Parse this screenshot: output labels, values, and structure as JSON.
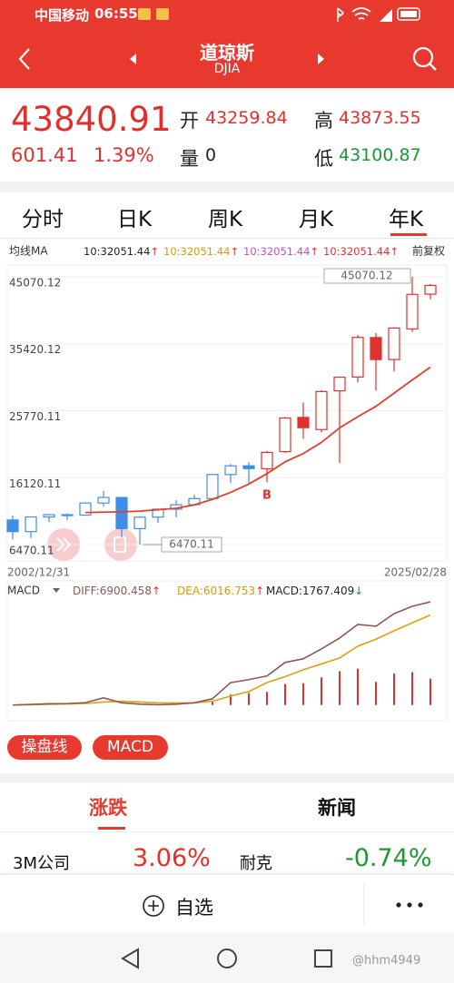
{
  "status_bar": {
    "carrier": "中国移动",
    "time": "06:55"
  },
  "header": {
    "title": "道琼斯",
    "subtitle": "DJIA"
  },
  "quote": {
    "price": "43840.91",
    "change": "601.41",
    "change_pct": "1.39%",
    "open_label": "开",
    "open": "43259.84",
    "high_label": "高",
    "high": "43873.55",
    "volume_label": "量",
    "volume": "0",
    "low_label": "低",
    "low": "43100.87"
  },
  "tabs": [
    "分时",
    "日K",
    "周K",
    "月K",
    "年K"
  ],
  "chart_data": [
    {
      "type": "candlestick",
      "ma_label": "均线MA",
      "ma_legend": [
        {
          "text": "10:32051.44",
          "trend": "↑",
          "color": "#222222"
        },
        {
          "text": "10:32051.44",
          "trend": "↑",
          "color": "#d99a00"
        },
        {
          "text": "10:32051.44",
          "trend": "↑",
          "color": "#c050c0"
        },
        {
          "text": "10:32051.44",
          "trend": "↑",
          "color": "#e03030"
        }
      ],
      "adjust_label": "前复权",
      "categories": [
        "2002/12/31",
        null,
        null,
        null,
        null,
        null,
        null,
        null,
        null,
        null,
        null,
        null,
        null,
        null,
        null,
        null,
        null,
        null,
        null,
        null,
        null,
        null,
        null,
        "2025/02/28"
      ],
      "open": [
        10022,
        8342,
        10453,
        10783,
        10718,
        12460,
        13262,
        8772,
        10431,
        11577,
        12221,
        13104,
        16572,
        17823,
        17405,
        19872,
        24809,
        23058,
        28638,
        30627,
        36321,
        33148,
        37566,
        42574
      ],
      "high": [
        10673,
        10454,
        10868,
        10984,
        12510,
        14198,
        13279,
        10580,
        11625,
        12876,
        13661,
        16588,
        18103,
        18351,
        19987,
        24876,
        26952,
        28701,
        30637,
        36679,
        36953,
        37778,
        45070.12,
        44034
      ],
      "low": [
        7198,
        7416,
        9708,
        10012,
        10661,
        11939,
        7450,
        6470.11,
        9614,
        10405,
        12035,
        13104,
        15340,
        15370,
        15451,
        19677,
        21713,
        22638,
        18214,
        29856,
        28661,
        31430,
        37122,
        41844
      ],
      "close": [
        8342,
        10454,
        10783,
        10718,
        12463,
        13265,
        8776,
        10428,
        11578,
        12218,
        13104,
        16577,
        17823,
        17425,
        19763,
        24719,
        23327,
        28538,
        30606,
        36338,
        33147,
        37690,
        42544,
        43840.91
      ],
      "colors": [
        "#3f8ee8",
        "#3f8ee8",
        "#3f8ee8",
        "#3f8ee8",
        "#3f8ee8",
        "#3f8ee8",
        "#3f8ee8",
        "#3f8ee8",
        "#3f8ee8",
        "#3f8ee8",
        "#3f8ee8",
        "#3f8ee8",
        "#3f8ee8",
        "#3f8ee8",
        "#e03030",
        "#e03030",
        "#e03030",
        "#e03030",
        "#e03030",
        "#e03030",
        "#e03030",
        "#e03030",
        "#e03030",
        "#e03030"
      ],
      "ma": [
        null,
        null,
        null,
        null,
        11100,
        11150,
        11200,
        11300,
        11500,
        11700,
        12200,
        13000,
        14000,
        15200,
        16700,
        18400,
        19600,
        21200,
        23300,
        24900,
        26400,
        28300,
        30200,
        32051.44
      ],
      "ma_color": "#e04030",
      "high_marker": "45070.12",
      "low_marker": "6470.11",
      "signal": "B",
      "ylim": [
        6470.11,
        45070.12
      ],
      "yticks": [
        45070.12,
        35420.12,
        25770.11,
        16120.11,
        6470.11
      ],
      "grid": true
    },
    {
      "type": "macd",
      "label": "MACD",
      "legend": [
        {
          "text": "DIFF:6900.458",
          "trend": "↑",
          "color": "#8b5a55"
        },
        {
          "text": "DEA:6016.753",
          "trend": "↑",
          "color": "#d99a00"
        },
        {
          "text": "MACD:1767.409",
          "trend": "↓",
          "color": "#222222"
        }
      ],
      "diff": [
        0,
        40,
        90,
        100,
        160,
        480,
        150,
        60,
        20,
        60,
        150,
        420,
        1500,
        1700,
        1940,
        2850,
        3090,
        3750,
        4480,
        5390,
        5270,
        6110,
        6600,
        6900.458
      ],
      "dea": [
        0,
        20,
        50,
        70,
        100,
        200,
        250,
        200,
        150,
        140,
        150,
        250,
        600,
        900,
        1500,
        1900,
        2360,
        2750,
        3150,
        3930,
        4400,
        4960,
        5500,
        6016.753
      ],
      "macd": [
        0,
        0,
        0,
        0,
        0,
        0,
        0,
        0,
        0,
        0,
        0,
        200,
        700,
        800,
        880,
        1400,
        1460,
        1850,
        2260,
        2430,
        1550,
        2100,
        2200,
        1767.409
      ],
      "diff_color": "#8b5a55",
      "dea_color": "#e0a010",
      "bar_color": "#e03030",
      "ylim": [
        -500,
        8300
      ]
    }
  ],
  "indicator_buttons": [
    "操盘线",
    "MACD"
  ],
  "news_tabs": [
    "涨跌",
    "新闻"
  ],
  "movers": [
    {
      "name": "3M公司",
      "change": "3.06%"
    },
    {
      "name": "耐克",
      "change": "-0.74%"
    }
  ],
  "bottom_bar": {
    "watchlist": "自选"
  },
  "watermark": "@hhm4949"
}
